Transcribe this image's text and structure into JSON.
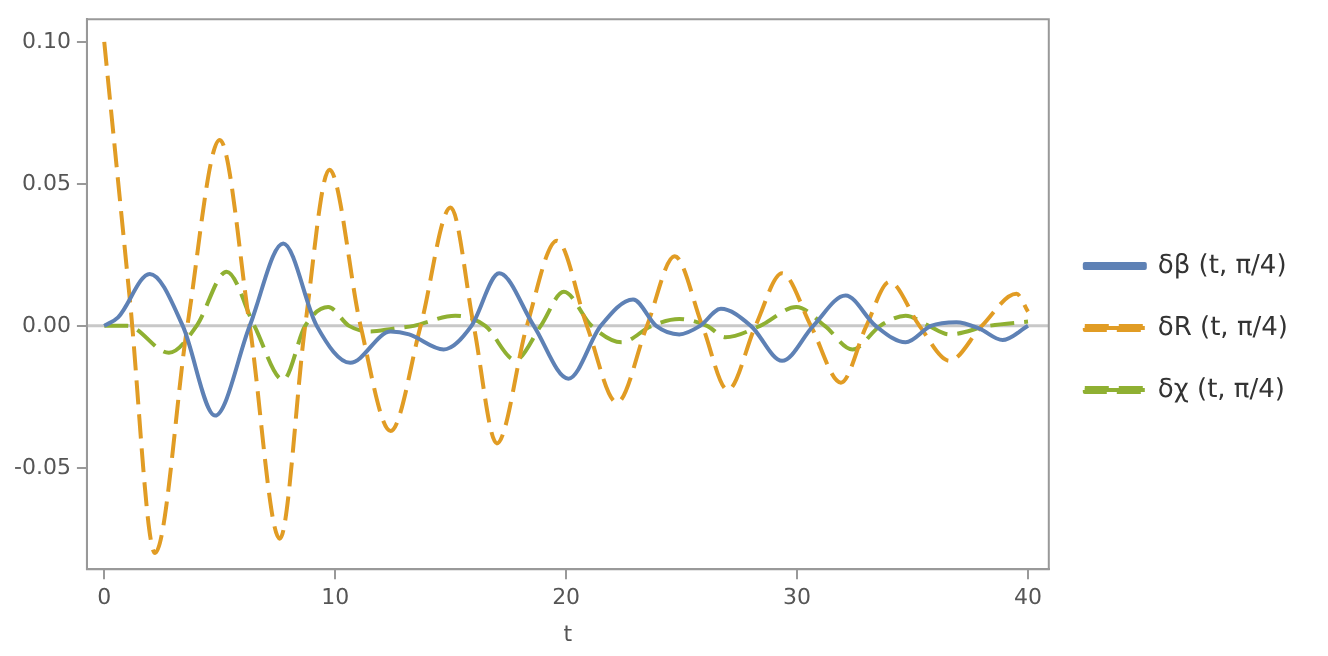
{
  "chart_data": {
    "type": "line",
    "xlabel": "t",
    "xlim": [
      -0.75,
      40.9
    ],
    "ylim": [
      -0.0857,
      0.108
    ],
    "xticks": [
      0,
      10,
      20,
      30,
      40
    ],
    "yticks": [
      {
        "value": -0.05,
        "label": "-0.05"
      },
      {
        "value": 0,
        "label": "0.00"
      },
      {
        "value": 0.05,
        "label": "0.05"
      },
      {
        "value": 0.1,
        "label": "0.10"
      }
    ],
    "grid": false,
    "legend": "right",
    "marker": "none",
    "ref_lines": [
      {
        "axis": "y",
        "value": 0,
        "color": "#c8c8c8"
      }
    ],
    "series": [
      {
        "name": "δβ (t, π/4)",
        "color": "#5e81b5",
        "line_style": "solid",
        "x": [
          0,
          0.6,
          1.97,
          3.4,
          4.8,
          6.3,
          7.75,
          9.2,
          10.65,
          12.4,
          13.2,
          14.7,
          15.9,
          17.1,
          18.6,
          20.1,
          21.5,
          22.9,
          23.9,
          24.9,
          25.8,
          26.7,
          28,
          29.35,
          30.7,
          32.1,
          33.4,
          34.7,
          35.8,
          36.9,
          37.9,
          38.9,
          40
        ],
        "values": [
          0,
          0.003,
          0.0183,
          0,
          -0.0316,
          0,
          0.029,
          0,
          -0.013,
          -0.002,
          -0.003,
          -0.0083,
          0,
          0.0185,
          0,
          -0.0186,
          0,
          0.0093,
          0,
          -0.003,
          0,
          0.006,
          0,
          -0.0123,
          0,
          0.0107,
          0,
          -0.0058,
          0,
          0.0013,
          -0.001,
          -0.005,
          0
        ]
      },
      {
        "name": "δR (t, π/4)",
        "color": "#e19c24",
        "line_style": "dashed",
        "x": [
          0,
          1.1,
          2.2,
          3.6,
          5,
          6.3,
          7.6,
          8.7,
          9.75,
          11.1,
          12.4,
          13.7,
          15,
          16,
          17,
          18.3,
          19.6,
          20.9,
          22.2,
          23.5,
          24.7,
          25.9,
          27,
          28.2,
          29.35,
          30.6,
          31.9,
          33,
          34,
          35.3,
          36.6,
          38,
          39.5,
          40
        ],
        "values": [
          0.1,
          0.01,
          -0.08,
          0,
          0.0655,
          0,
          -0.075,
          0,
          0.055,
          0,
          -0.037,
          0,
          0.0417,
          0,
          -0.0414,
          0,
          0.03,
          0,
          -0.027,
          0,
          0.0245,
          0,
          -0.0226,
          0,
          0.0185,
          0,
          -0.02,
          0,
          0.0155,
          0,
          -0.0123,
          0,
          0.0113,
          0.005
        ]
      },
      {
        "name": "δχ (t, π/4)",
        "color": "#8fb032",
        "line_style": "dashed",
        "x": [
          0,
          1,
          2.8,
          4,
          5.3,
          6.5,
          7.75,
          8.7,
          9.7,
          10.6,
          11.5,
          12.5,
          13.4,
          15.2,
          16.5,
          17.8,
          18.9,
          19.9,
          21.1,
          22.4,
          23.7,
          24.9,
          26.1,
          26.9,
          28.4,
          29.97,
          31.2,
          32.4,
          33.6,
          34.7,
          35.7,
          36.6,
          38.3,
          40
        ],
        "values": [
          0,
          0,
          -0.0095,
          0,
          0.0191,
          0,
          -0.019,
          0,
          0.0066,
          0,
          -0.002,
          -0.001,
          0,
          0.0036,
          0,
          -0.012,
          0,
          0.012,
          0,
          -0.0058,
          0,
          0.0024,
          0,
          -0.004,
          0,
          0.0066,
          0,
          -0.0083,
          0,
          0.0036,
          0,
          -0.003,
          0,
          0.0015
        ]
      }
    ]
  }
}
